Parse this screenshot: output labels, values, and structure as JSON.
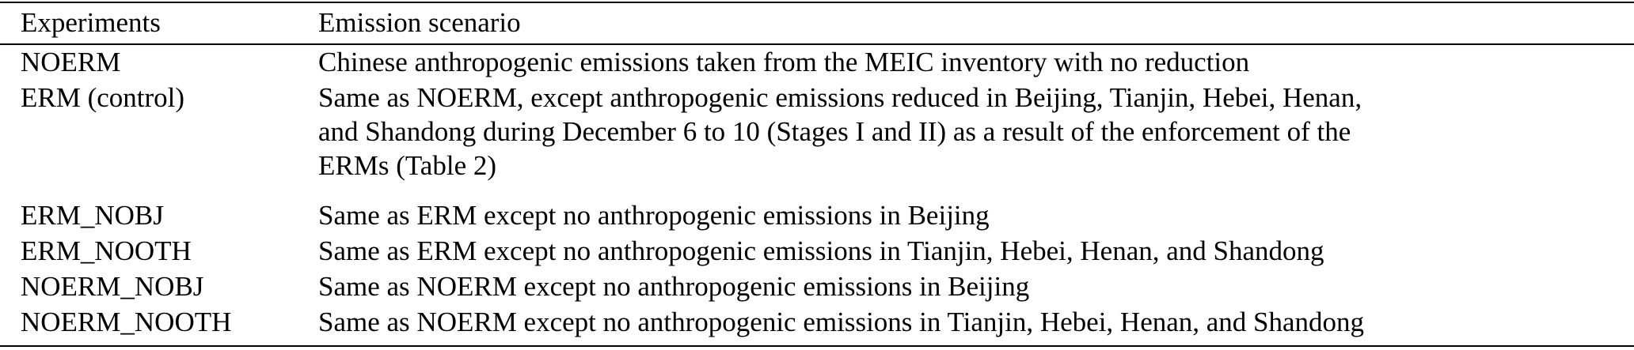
{
  "table": {
    "headers": {
      "experiments": "Experiments",
      "scenario": "Emission scenario"
    },
    "rows": [
      {
        "experiment": "NOERM",
        "scenario_lines": [
          "Chinese anthropogenic emissions taken from the MEIC inventory with no reduction"
        ]
      },
      {
        "experiment": "ERM (control)",
        "scenario_lines": [
          "Same as NOERM, except anthropogenic emissions reduced in Beijing, Tianjin, Hebei, Henan,",
          "and Shandong during December 6 to 10 (Stages I and II) as a result of the enforcement of the",
          "ERMs (Table 2)"
        ]
      },
      {
        "experiment": "ERM_NOBJ",
        "scenario_lines": [
          "Same as ERM except no anthropogenic emissions in Beijing"
        ]
      },
      {
        "experiment": "ERM_NOOTH",
        "scenario_lines": [
          "Same as ERM except no anthropogenic emissions in Tianjin, Hebei, Henan, and Shandong"
        ]
      },
      {
        "experiment": "NOERM_NOBJ",
        "scenario_lines": [
          "Same as NOERM except no anthropogenic emissions in Beijing"
        ]
      },
      {
        "experiment": "NOERM_NOOTH",
        "scenario_lines": [
          "Same as NOERM except no anthropogenic emissions in Tianjin, Hebei, Henan, and Shandong"
        ]
      }
    ]
  }
}
